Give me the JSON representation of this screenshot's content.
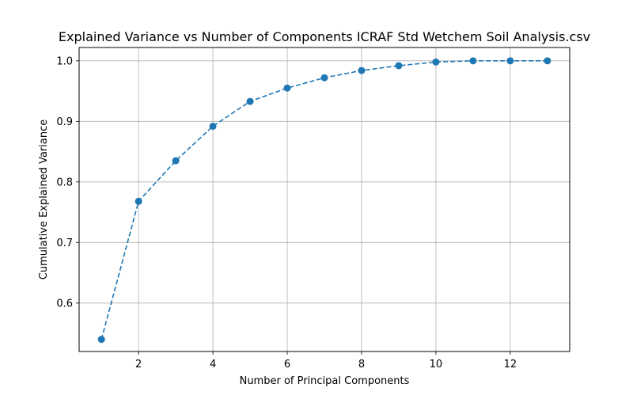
{
  "chart_data": {
    "type": "line",
    "title": "Explained Variance vs Number of Components ICRAF Std Wetchem Soil Analysis.csv",
    "xlabel": "Number of Principal Components",
    "ylabel": "Cumulative Explained Variance",
    "xlim": [
      0.4,
      13.6
    ],
    "ylim": [
      0.52,
      1.022
    ],
    "x_ticks": [
      2,
      4,
      6,
      8,
      10,
      12
    ],
    "y_ticks": [
      0.6,
      0.7,
      0.8,
      0.9,
      1.0
    ],
    "x_tick_labels": [
      "2",
      "4",
      "6",
      "8",
      "10",
      "12"
    ],
    "y_tick_labels": [
      "0.6",
      "0.7",
      "0.8",
      "0.9",
      "1.0"
    ],
    "grid": true,
    "line_style": "dashed",
    "marker": "circle",
    "series": [
      {
        "x": [
          1,
          2,
          3,
          4,
          5,
          6,
          7,
          8,
          9,
          10,
          11,
          12,
          13
        ],
        "values": [
          0.54,
          0.768,
          0.835,
          0.892,
          0.933,
          0.955,
          0.972,
          0.984,
          0.992,
          0.998,
          1.0,
          1.0,
          1.0
        ],
        "color": "#1f77b4"
      }
    ]
  }
}
